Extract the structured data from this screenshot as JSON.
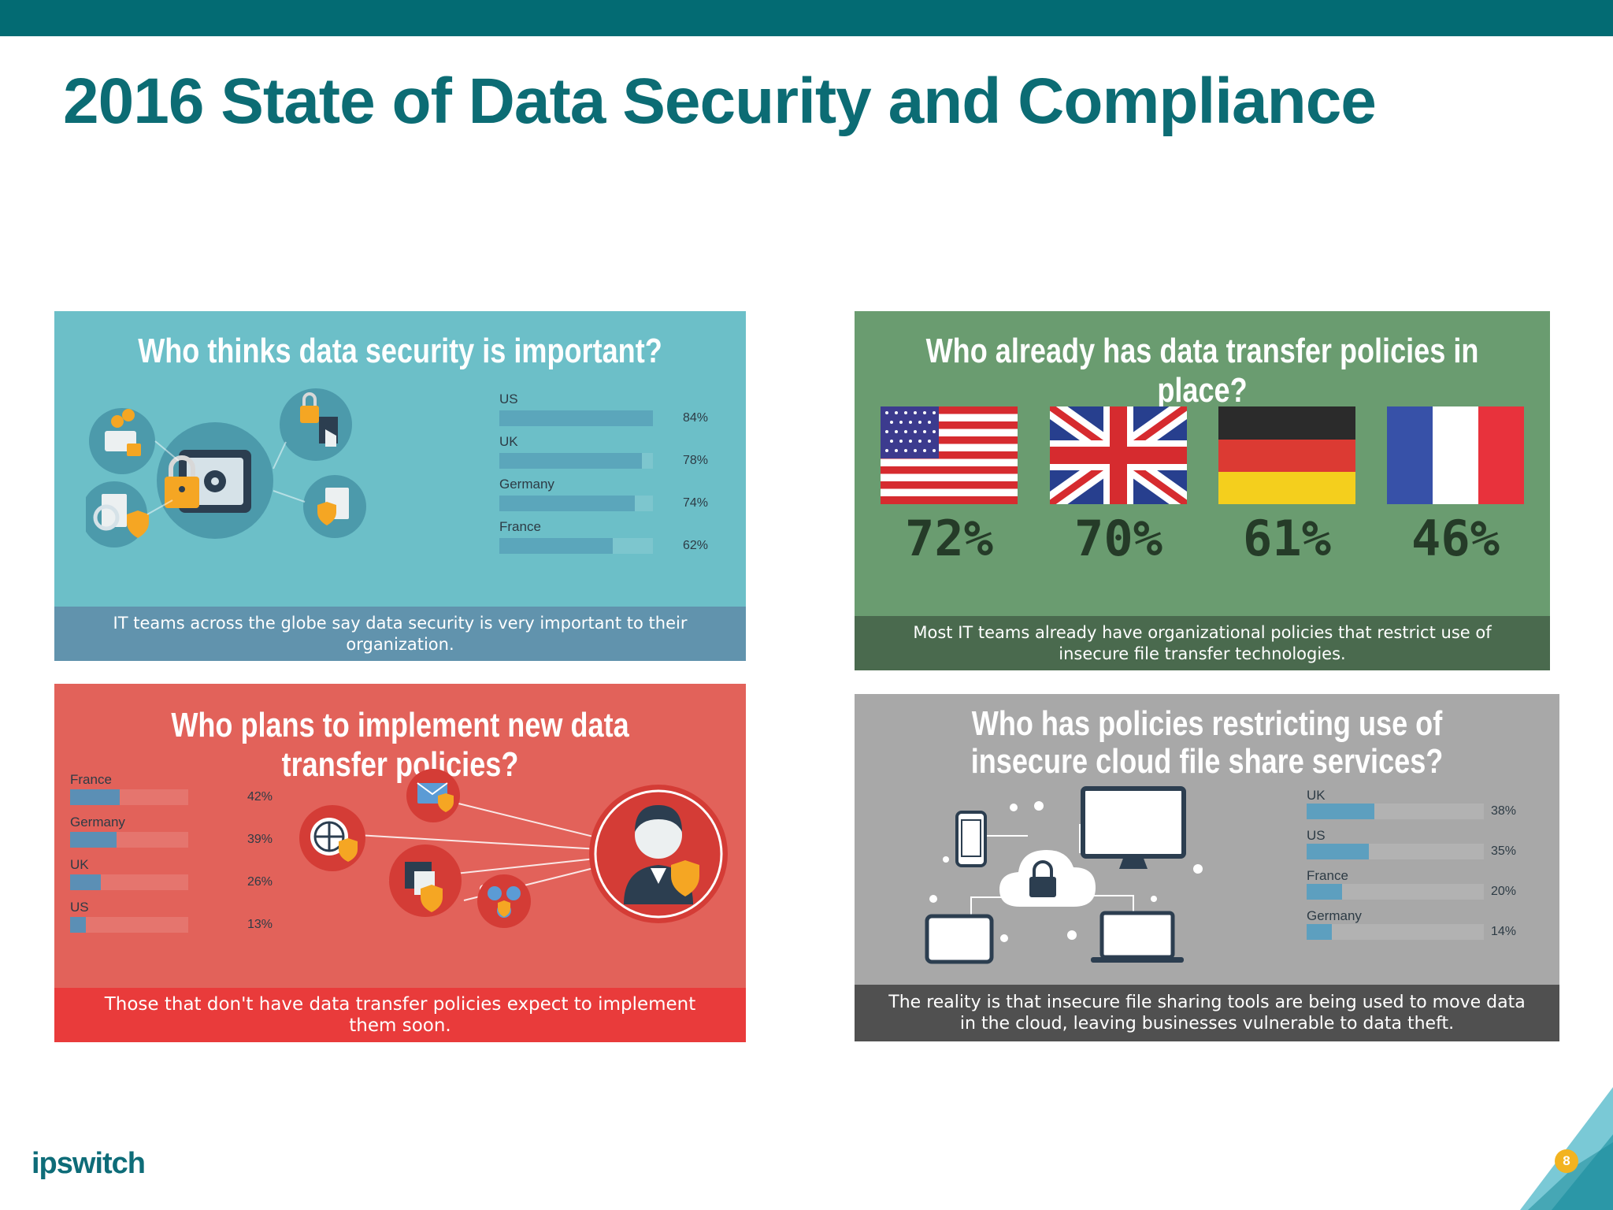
{
  "slide": {
    "title": "2016 State of Data Security and Compliance",
    "logo_text": "ipswitch",
    "page_number": "8",
    "colors": {
      "top_bar": "#036b73",
      "title": "#0c6c74",
      "page_badge": "#f2b320"
    }
  },
  "chart_data": [
    {
      "type": "bar",
      "orientation": "horizontal",
      "title": "Who thinks data security is important?",
      "caption": "IT teams across the globe say data security is very important to their organization.",
      "categories": [
        "US",
        "UK",
        "Germany",
        "France"
      ],
      "values": [
        84,
        78,
        74,
        62
      ],
      "value_labels": [
        "84%",
        "78%",
        "74%",
        "62%"
      ],
      "unit": "%",
      "background": "#6cbfc8"
    },
    {
      "type": "bar",
      "title": "Who already has data transfer policies in place?",
      "caption": "Most IT teams already have organizational policies that restrict use of insecure file transfer technologies.",
      "categories": [
        "US",
        "UK",
        "Germany",
        "France"
      ],
      "category_icons": [
        "us-flag-icon",
        "uk-flag-icon",
        "germany-flag-icon",
        "france-flag-icon"
      ],
      "values": [
        72,
        70,
        61,
        46
      ],
      "value_labels": [
        "72%",
        "70%",
        "61%",
        "46%"
      ],
      "unit": "%",
      "background": "#6a9c70"
    },
    {
      "type": "bar",
      "orientation": "horizontal",
      "title": "Who plans to implement new data transfer policies?",
      "caption": "Those that don't have data transfer policies expect to implement them soon.",
      "categories": [
        "France",
        "Germany",
        "UK",
        "US"
      ],
      "values": [
        42,
        39,
        26,
        13
      ],
      "value_labels": [
        "42%",
        "39%",
        "26%",
        "13%"
      ],
      "unit": "%",
      "background": "#e2625a"
    },
    {
      "type": "bar",
      "orientation": "horizontal",
      "title": "Who has policies restricting use of insecure cloud file share services?",
      "caption": "The reality is that insecure file sharing tools are being used to move data in the cloud, leaving businesses vulnerable to data theft.",
      "categories": [
        "UK",
        "US",
        "France",
        "Germany"
      ],
      "values": [
        38,
        35,
        20,
        14
      ],
      "value_labels": [
        "38%",
        "35%",
        "20%",
        "14%"
      ],
      "unit": "%",
      "background": "#a8a8a8"
    }
  ]
}
